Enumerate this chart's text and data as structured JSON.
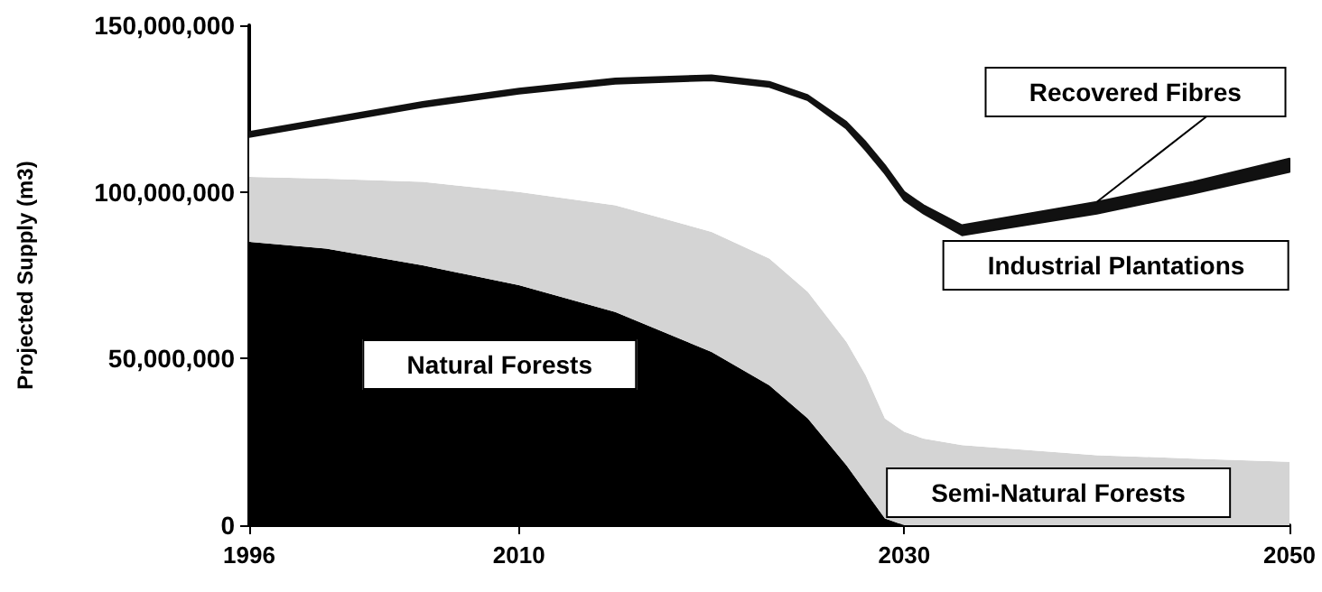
{
  "chart_data": {
    "type": "area",
    "stacked": true,
    "ylabel": "Projected Supply (m3)",
    "x": [
      1996,
      2000,
      2005,
      2010,
      2015,
      2020,
      2023,
      2025,
      2027,
      2028,
      2029,
      2030,
      2031,
      2033,
      2040,
      2045,
      2050
    ],
    "xlim": [
      1996,
      2050
    ],
    "xticks": [
      1996,
      2010,
      2030,
      2050
    ],
    "ylim": [
      0,
      150000000
    ],
    "yticks": [
      {
        "value": 0,
        "label": "0"
      },
      {
        "value": 50000000,
        "label": "50,000,000"
      },
      {
        "value": 100000000,
        "label": "100,000,000"
      },
      {
        "value": 150000000,
        "label": "150,000,000"
      }
    ],
    "series": [
      {
        "name": "Natural Forests",
        "color": "#000000",
        "values": [
          85000000,
          83000000,
          78000000,
          72000000,
          64000000,
          52000000,
          42000000,
          32000000,
          18000000,
          10000000,
          2000000,
          0,
          0,
          0,
          0,
          0,
          0
        ]
      },
      {
        "name": "Semi-Natural Forests",
        "color": "#d4d4d4",
        "values": [
          19500000,
          21000000,
          25000000,
          28000000,
          32000000,
          36000000,
          38000000,
          38000000,
          37000000,
          35000000,
          30000000,
          28000000,
          26000000,
          24000000,
          21000000,
          20000000,
          19000000
        ]
      },
      {
        "name": "Industrial Plantations",
        "color": "#ffffff",
        "values": [
          12000000,
          16500000,
          22500000,
          29500000,
          36500000,
          45500000,
          51500000,
          57500000,
          64000000,
          67500000,
          73500000,
          69500000,
          67500000,
          63000000,
          72500000,
          79500000,
          87000000
        ]
      },
      {
        "name": "Recovered Fibres",
        "color": "#111111",
        "values": [
          1500000,
          1500000,
          1500000,
          1500000,
          1500000,
          1500000,
          1500000,
          1500000,
          2000000,
          2500000,
          2500000,
          2500000,
          2500000,
          3000000,
          3500000,
          3500000,
          4000000
        ]
      }
    ]
  }
}
